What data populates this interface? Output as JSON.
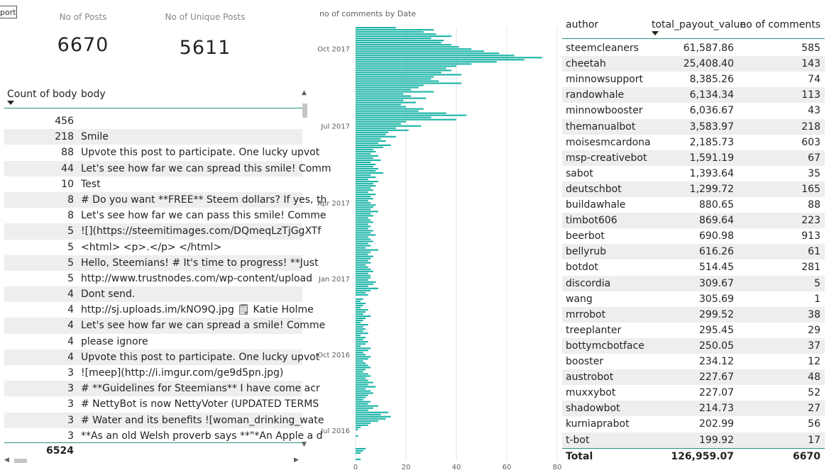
{
  "stub_label": "port",
  "kpis": {
    "posts_label": "No of Posts",
    "posts_value": "6670",
    "unique_label": "No of Unique Posts",
    "unique_value": "5611"
  },
  "left_table": {
    "col_count": "Count of body",
    "col_body": "body",
    "rows": [
      {
        "count": "456",
        "body": ""
      },
      {
        "count": "218",
        "body": "Smile"
      },
      {
        "count": "88",
        "body": "Upvote this post to participate. One lucky upvot"
      },
      {
        "count": "44",
        "body": "Let's see how far we can spread this smile! Comm"
      },
      {
        "count": "10",
        "body": "Test"
      },
      {
        "count": "8",
        "body": "# Do you want **FREE** Steem dollars?  If yes, th"
      },
      {
        "count": "8",
        "body": "Let's see how far we can pass this smile! Comme"
      },
      {
        "count": "5",
        "body": "![](https://steemitimages.com/DQmeqLzTjGgXTf"
      },
      {
        "count": "5",
        "body": "<html> <p>.</p> </html>"
      },
      {
        "count": "5",
        "body": "Hello, Steemians! # It's time to progress!  **Just"
      },
      {
        "count": "5",
        "body": "http://www.trustnodes.com/wp-content/upload"
      },
      {
        "count": "4",
        "body": "Dont send."
      },
      {
        "count": "4",
        "body": "http://sj.uploads.im/kNO9Q.jpg 🗒 Katie Holme"
      },
      {
        "count": "4",
        "body": "Let's see how far we can spread a smile! Comme"
      },
      {
        "count": "4",
        "body": "please ignore"
      },
      {
        "count": "4",
        "body": "Upvote this post to participate. One lucky upvot"
      },
      {
        "count": "3",
        "body": "![meep](http://i.imgur.com/ge9d5pn.jpg)"
      },
      {
        "count": "3",
        "body": "#  **Guidelines for Steemians**  I have come acr"
      },
      {
        "count": "3",
        "body": "# NettyBot is now NettyVoter (UPDATED TERMS"
      },
      {
        "count": "3",
        "body": "# Water and its benefits  ![woman_drinking_wate"
      },
      {
        "count": "3",
        "body": "**As an old Welsh proverb says **\"*An Apple a d"
      }
    ],
    "total": "6524"
  },
  "chart_data": {
    "type": "bar",
    "title": "no of comments by Date",
    "orientation": "horizontal",
    "y_tick_labels": [
      "Oct 2017",
      "Jul 2017",
      "Apr 2017",
      "Jan 2017",
      "Oct 2016",
      "Jul 2016"
    ],
    "x_tick_labels": [
      "0",
      "20",
      "40",
      "60",
      "80"
    ],
    "xlim": [
      0,
      80
    ],
    "bar_color": "#1ab4a6",
    "values": [
      16,
      31,
      27,
      32,
      38,
      30,
      35,
      34,
      38,
      41,
      46,
      51,
      57,
      63,
      74,
      67,
      56,
      46,
      40,
      36,
      38,
      34,
      42,
      31,
      30,
      33,
      42,
      27,
      25,
      22,
      31,
      19,
      22,
      28,
      19,
      24,
      18,
      20,
      27,
      25,
      36,
      44,
      30,
      40,
      20,
      18,
      26,
      16,
      21,
      13,
      12,
      16,
      10,
      12,
      9,
      14,
      11,
      7,
      8,
      6,
      9,
      7,
      10,
      6,
      8,
      7,
      9,
      8,
      11,
      6,
      8,
      5,
      9,
      7,
      8,
      6,
      7,
      5,
      8,
      6,
      7,
      5,
      6,
      8,
      7,
      6,
      9,
      6,
      7,
      5,
      6,
      7,
      5,
      6,
      5,
      7,
      6,
      8,
      5,
      6,
      7,
      5,
      6,
      4,
      9,
      6,
      5,
      7,
      6,
      5,
      6,
      4,
      5,
      6,
      7,
      5,
      6,
      6,
      5,
      8,
      7,
      5,
      9,
      6,
      4,
      5,
      0,
      3,
      2,
      4,
      3,
      2,
      5,
      4,
      3,
      6,
      4,
      3,
      2,
      5,
      3,
      4,
      3,
      5,
      2,
      4,
      3,
      5,
      4,
      2,
      6,
      5,
      3,
      4,
      6,
      5,
      3,
      4,
      5,
      6,
      4,
      3,
      5,
      6,
      4,
      5,
      7,
      5,
      8,
      4,
      6,
      7,
      5,
      4,
      3,
      6,
      5,
      9,
      7,
      5,
      13,
      10,
      14,
      12,
      9,
      6,
      5,
      2,
      1,
      0,
      0,
      1,
      0,
      0,
      0,
      0,
      0,
      4,
      3,
      2,
      0,
      0,
      2
    ]
  },
  "right_table": {
    "col_author": "author",
    "col_payout": "total_payout_value",
    "col_comments": "no of comments",
    "rows": [
      {
        "author": "steemcleaners",
        "payout": "61,587.86",
        "comments": "585"
      },
      {
        "author": "cheetah",
        "payout": "25,408.40",
        "comments": "143"
      },
      {
        "author": "minnowsupport",
        "payout": "8,385.26",
        "comments": "74"
      },
      {
        "author": "randowhale",
        "payout": "6,134.34",
        "comments": "113"
      },
      {
        "author": "minnowbooster",
        "payout": "6,036.67",
        "comments": "43"
      },
      {
        "author": "themanualbot",
        "payout": "3,583.97",
        "comments": "218"
      },
      {
        "author": "moisesmcardona",
        "payout": "2,185.73",
        "comments": "603"
      },
      {
        "author": "msp-creativebot",
        "payout": "1,591.19",
        "comments": "67"
      },
      {
        "author": "sabot",
        "payout": "1,393.64",
        "comments": "35"
      },
      {
        "author": "deutschbot",
        "payout": "1,299.72",
        "comments": "165"
      },
      {
        "author": "buildawhale",
        "payout": "880.65",
        "comments": "88"
      },
      {
        "author": "timbot606",
        "payout": "869.64",
        "comments": "223"
      },
      {
        "author": "beerbot",
        "payout": "690.98",
        "comments": "913"
      },
      {
        "author": "bellyrub",
        "payout": "616.26",
        "comments": "61"
      },
      {
        "author": "botdot",
        "payout": "514.45",
        "comments": "281"
      },
      {
        "author": "discordia",
        "payout": "309.67",
        "comments": "5"
      },
      {
        "author": "wang",
        "payout": "305.69",
        "comments": "1"
      },
      {
        "author": "mrrobot",
        "payout": "299.52",
        "comments": "38"
      },
      {
        "author": "treeplanter",
        "payout": "295.45",
        "comments": "29"
      },
      {
        "author": "bottymcbotface",
        "payout": "250.05",
        "comments": "37"
      },
      {
        "author": "booster",
        "payout": "234.12",
        "comments": "12"
      },
      {
        "author": "austrobot",
        "payout": "227.67",
        "comments": "48"
      },
      {
        "author": "muxxybot",
        "payout": "227.07",
        "comments": "52"
      },
      {
        "author": "shadowbot",
        "payout": "214.73",
        "comments": "27"
      },
      {
        "author": "kurniaprabot",
        "payout": "202.99",
        "comments": "56"
      },
      {
        "author": "t-bot",
        "payout": "199.92",
        "comments": "17"
      }
    ],
    "total_label": "Total",
    "total_payout": "126,959.07",
    "total_comments": "6670"
  }
}
